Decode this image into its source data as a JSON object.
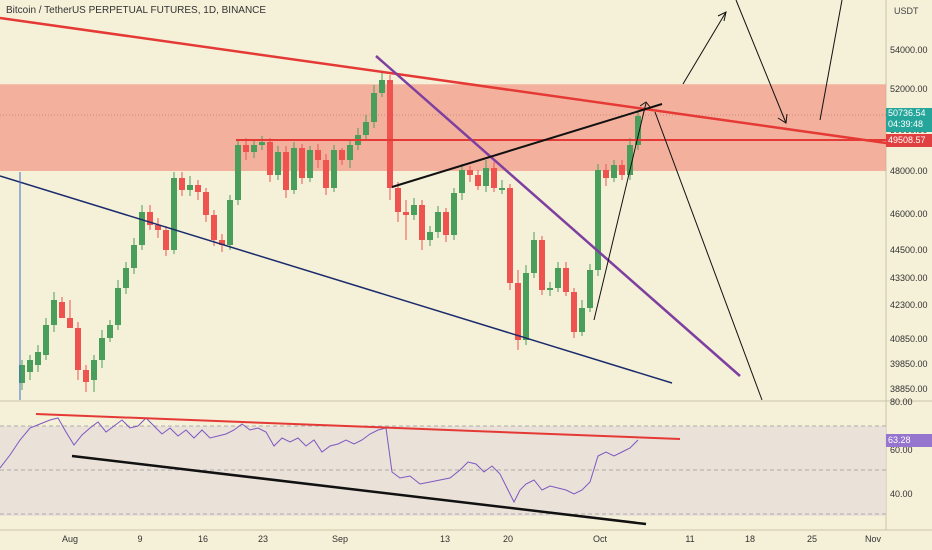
{
  "header": {
    "title": "Bitcoin / TetherUS PERPETUAL FUTURES, 1D, BINANCE",
    "unit": "USDT"
  },
  "price_axis": {
    "ticks": [
      "54000.00",
      "52000.00",
      "50000.00",
      "48000.00",
      "46000.00",
      "44500.00",
      "43300.00",
      "42300.00",
      "40850.00",
      "39850.00",
      "38850.00"
    ],
    "current_price": "50736.54",
    "countdown": "04:39:48",
    "level_price": "49508.57"
  },
  "rsi_axis": {
    "ticks": [
      "80.00",
      "60.00",
      "40.00"
    ],
    "current_value": "63.28"
  },
  "time_axis": {
    "labels": [
      "Aug",
      "9",
      "16",
      "23",
      "Sep",
      "13",
      "20",
      "Oct",
      "11",
      "18",
      "25",
      "Nov"
    ]
  },
  "colors": {
    "bull": "#4a9e5c",
    "bear": "#ef5350",
    "zone": "#f19c8a",
    "trend_red": "#e53935",
    "trend_purple": "#7e3fa0",
    "trend_navy": "#1a2a6c",
    "rsi": "#7e57c2"
  },
  "chart_data": {
    "type": "candlestick",
    "title": "Bitcoin / TetherUS PERPETUAL FUTURES, 1D, BINANCE",
    "x": [
      "2021-08-01",
      "2021-08-06",
      "2021-08-09",
      "2021-08-16",
      "2021-08-23",
      "2021-09-01",
      "2021-09-06",
      "2021-09-07",
      "2021-09-13",
      "2021-09-20",
      "2021-09-28",
      "2021-10-01",
      "2021-10-06"
    ],
    "close": [
      39900,
      42800,
      46200,
      45300,
      49200,
      48700,
      52500,
      46800,
      47100,
      42900,
      41200,
      47800,
      50736.54
    ],
    "ylim": [
      38300,
      55000
    ],
    "resistance_zone": [
      48000,
      52300
    ],
    "level": 49508.57,
    "rsi": {
      "last": 63.28,
      "ylim": [
        27,
        80
      ],
      "levels": [
        70,
        50,
        30
      ]
    }
  }
}
